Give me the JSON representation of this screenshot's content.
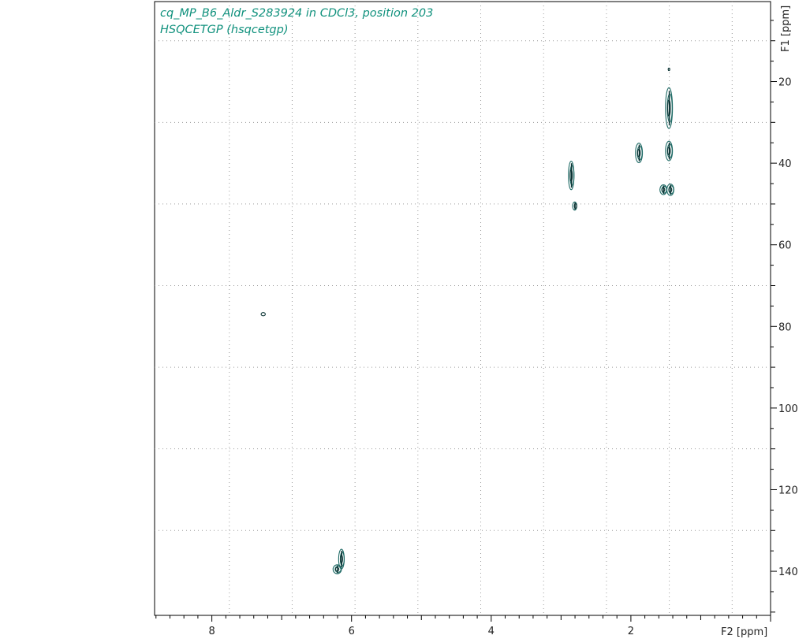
{
  "chart_data": {
    "type": "heatmap",
    "title": "cq_MP_B6_Aldr_S283924 in CDCl3, position 203",
    "subtitle": "HSQCETGP (hsqcetgp)",
    "xlabel": "F2 [ppm]",
    "ylabel": "F1 [ppm]",
    "x_reversed": true,
    "y_reversed": true,
    "xlim": [
      8.82,
      0.0
    ],
    "ylim": [
      0.4,
      150.8
    ],
    "x_ticks": [
      8,
      6,
      4,
      2
    ],
    "y_ticks": [
      20,
      40,
      60,
      80,
      100,
      120,
      140
    ],
    "x_minor_step": 0.2,
    "y_minor_step": 5,
    "x_grid": [
      7.75,
      6.85,
      5.95,
      5.05,
      4.15,
      3.25,
      2.35,
      1.45,
      0.55
    ],
    "y_grid": [
      10,
      30,
      50,
      70,
      90,
      110,
      130
    ],
    "grid": true,
    "colors": {
      "contour_outer": "#1f6b66",
      "contour_inner": "#0b3434",
      "title": "#10917d"
    },
    "peaks": [
      {
        "x": 1.45,
        "y": 17.0,
        "rx": 0.01,
        "ry": 0.3,
        "levels": 1
      },
      {
        "x": 1.45,
        "y": 26.5,
        "rx": 0.05,
        "ry": 5.0,
        "levels": 3
      },
      {
        "x": 1.45,
        "y": 37.0,
        "rx": 0.05,
        "ry": 2.4,
        "levels": 3
      },
      {
        "x": 1.88,
        "y": 37.5,
        "rx": 0.05,
        "ry": 2.4,
        "levels": 3
      },
      {
        "x": 1.53,
        "y": 46.5,
        "rx": 0.05,
        "ry": 1.2,
        "levels": 3
      },
      {
        "x": 1.43,
        "y": 46.5,
        "rx": 0.05,
        "ry": 1.4,
        "levels": 3
      },
      {
        "x": 2.85,
        "y": 43.0,
        "rx": 0.04,
        "ry": 3.5,
        "levels": 3
      },
      {
        "x": 2.8,
        "y": 50.5,
        "rx": 0.03,
        "ry": 1.0,
        "levels": 2
      },
      {
        "x": 7.26,
        "y": 77.0,
        "rx": 0.03,
        "ry": 0.4,
        "levels": 1
      },
      {
        "x": 6.14,
        "y": 137.0,
        "rx": 0.04,
        "ry": 2.4,
        "levels": 3
      },
      {
        "x": 6.2,
        "y": 139.5,
        "rx": 0.06,
        "ry": 1.1,
        "levels": 3
      }
    ]
  }
}
